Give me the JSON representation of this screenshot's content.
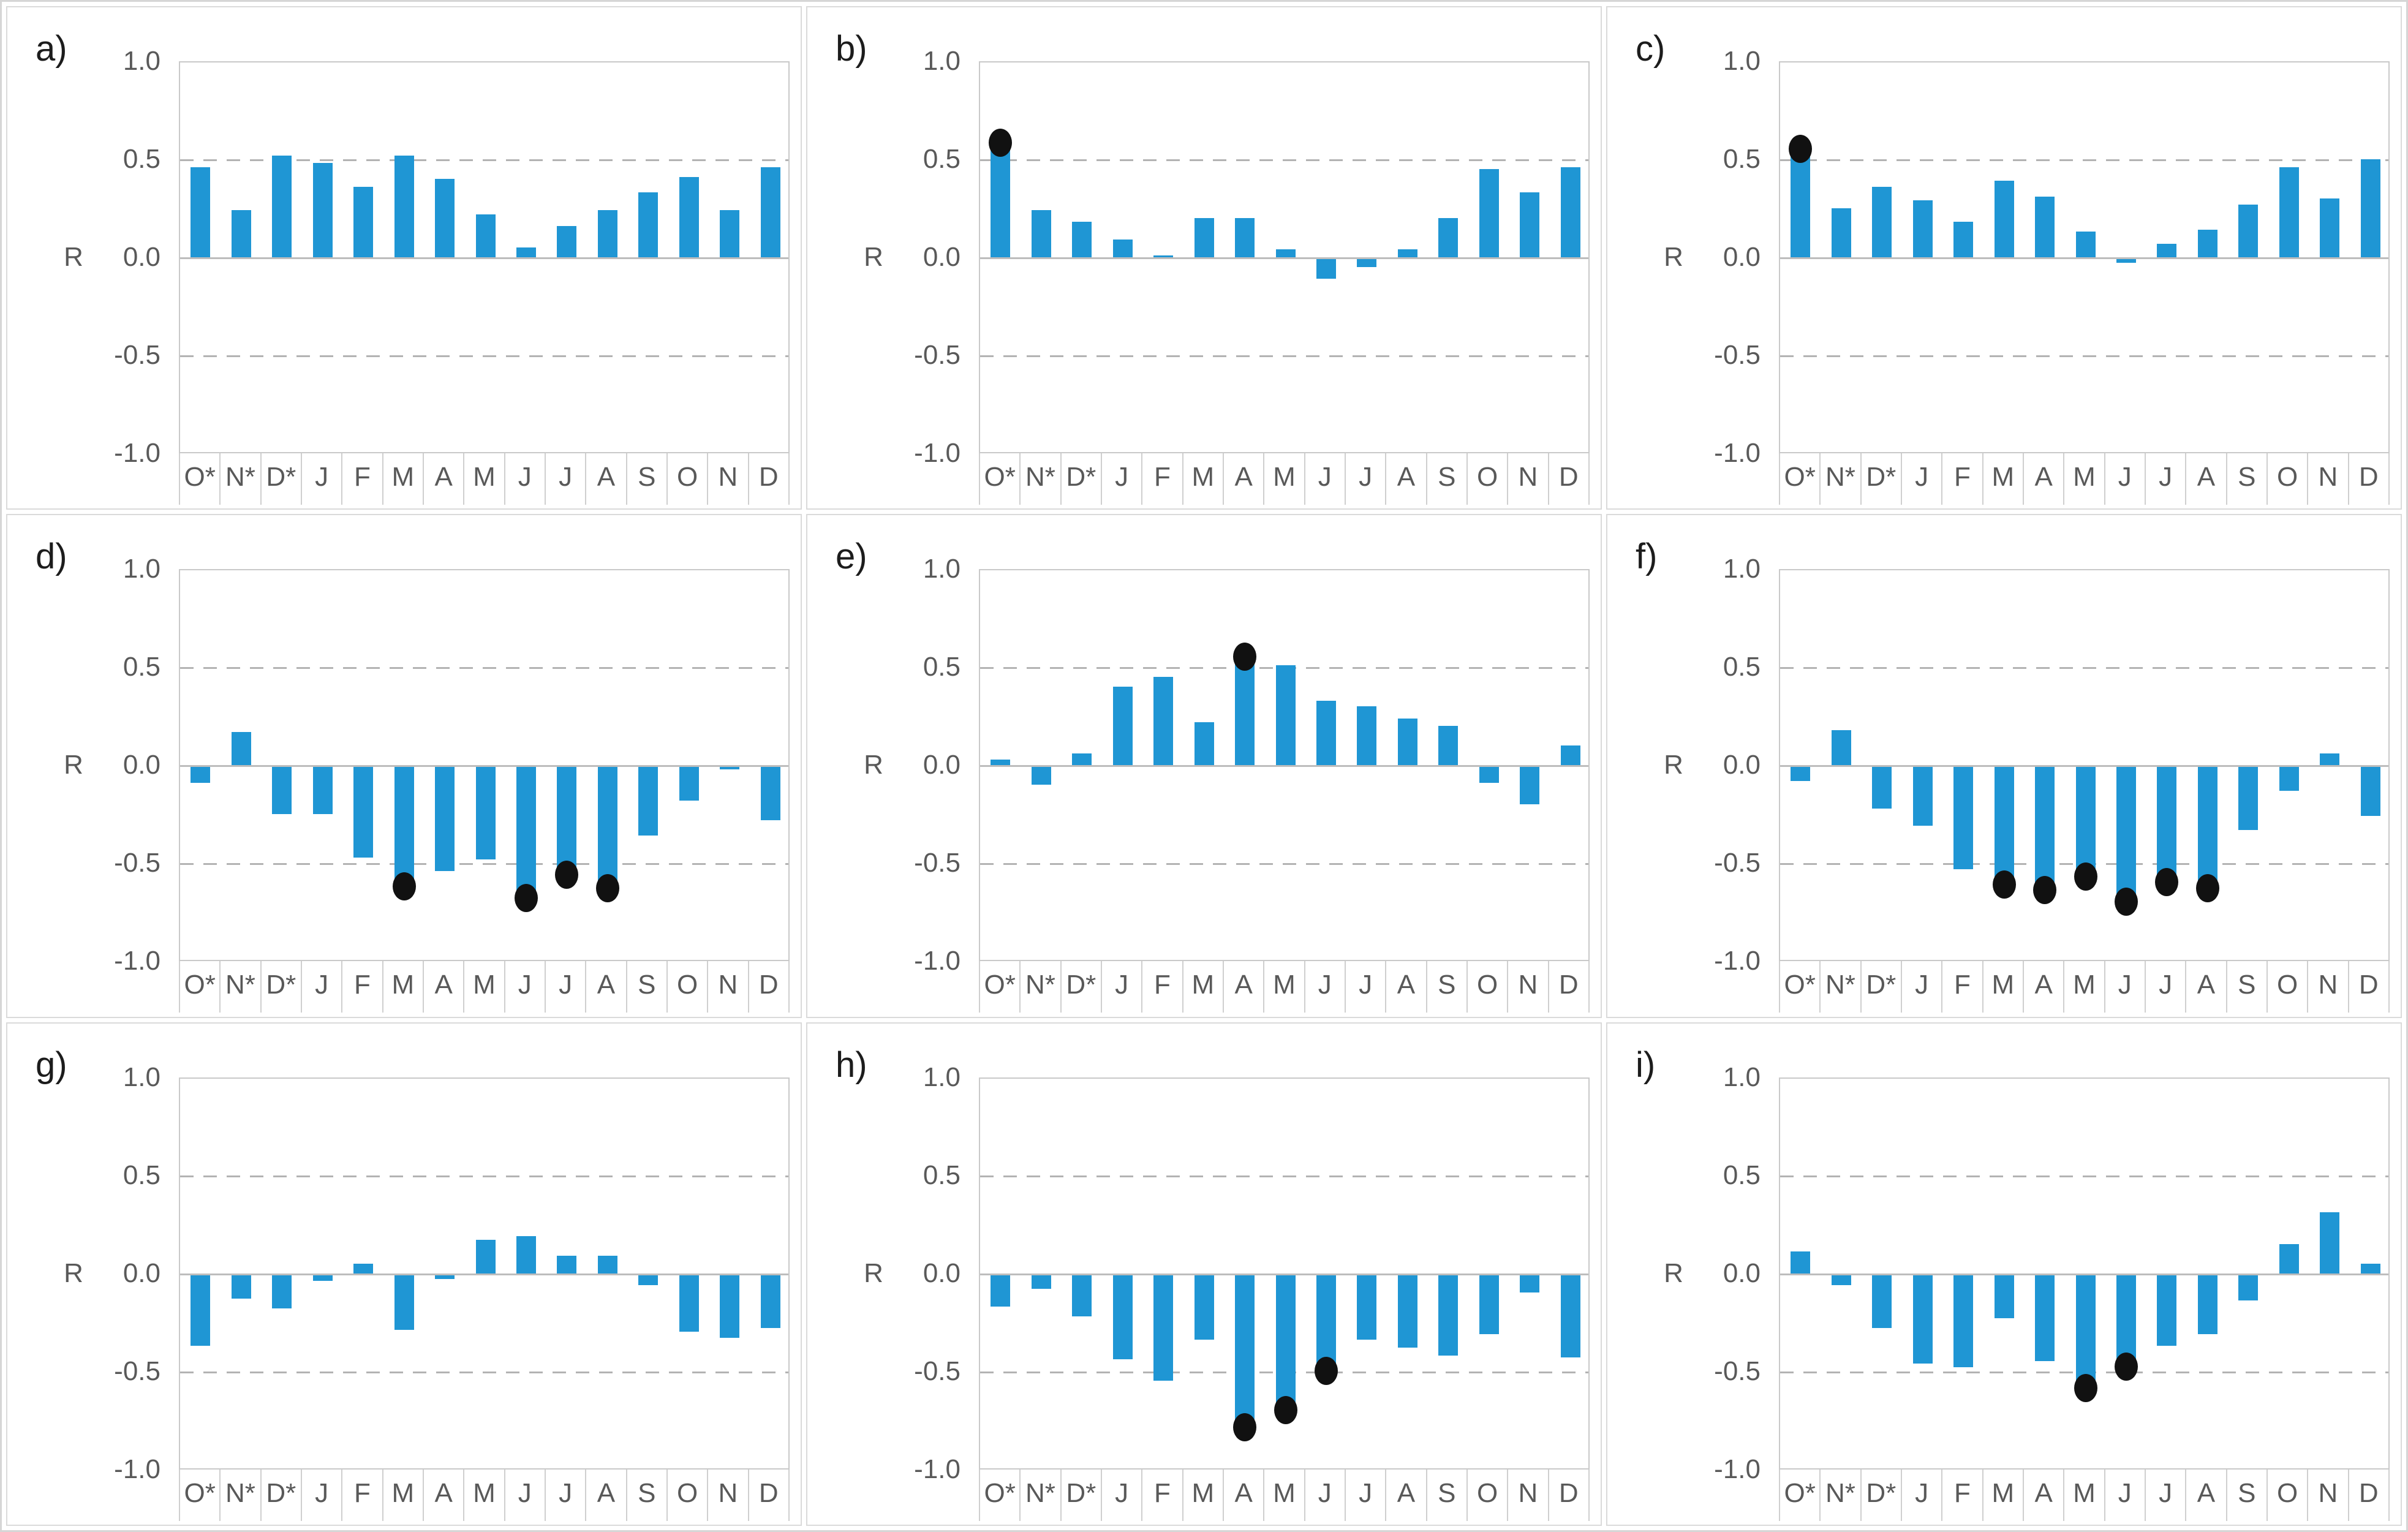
{
  "figure": {
    "y_axis_label": "R",
    "y_tick_labels": [
      "1.0",
      "0.5",
      "0.0",
      "-0.5",
      "-1.0"
    ],
    "categories": [
      "O*",
      "N*",
      "D*",
      "J",
      "F",
      "M",
      "A",
      "M",
      "J",
      "J",
      "A",
      "S",
      "O",
      "N",
      "D"
    ],
    "colors": {
      "bar": "#1f96d4",
      "significance_dot": "#111111",
      "gridline": "#b3b3b3",
      "zero_line": "#bdbdbd",
      "plot_border": "#c9c9c9",
      "panel_border": "#dadada",
      "tick_text": "#595959",
      "letter_text": "#1c1c1c"
    }
  },
  "chart_data": [
    {
      "type": "bar",
      "title": "a)",
      "ylabel": "R",
      "ylim": [
        -1.0,
        1.0
      ],
      "gridlines": [
        0.5,
        -0.5
      ],
      "grid_style": "dashed",
      "categories": [
        "O*",
        "N*",
        "D*",
        "J",
        "F",
        "M",
        "A",
        "M",
        "J",
        "J",
        "A",
        "S",
        "O",
        "N",
        "D"
      ],
      "values": [
        0.46,
        0.24,
        0.52,
        0.48,
        0.36,
        0.52,
        0.4,
        0.22,
        0.05,
        0.16,
        0.24,
        0.33,
        0.41,
        0.24,
        0.46
      ],
      "significant_marker_indices": []
    },
    {
      "type": "bar",
      "title": "b)",
      "ylabel": "R",
      "ylim": [
        -1.0,
        1.0
      ],
      "gridlines": [
        0.5,
        -0.5
      ],
      "grid_style": "dashed",
      "categories": [
        "O*",
        "N*",
        "D*",
        "J",
        "F",
        "M",
        "A",
        "M",
        "J",
        "J",
        "A",
        "S",
        "O",
        "N",
        "D"
      ],
      "values": [
        0.55,
        0.24,
        0.18,
        0.09,
        0.01,
        0.2,
        0.2,
        0.04,
        -0.1,
        -0.04,
        0.04,
        0.2,
        0.45,
        0.33,
        0.46
      ],
      "significant_marker_indices": [
        0
      ]
    },
    {
      "type": "bar",
      "title": "c)",
      "ylabel": "R",
      "ylim": [
        -1.0,
        1.0
      ],
      "gridlines": [
        0.5,
        -0.5
      ],
      "grid_style": "dashed",
      "categories": [
        "O*",
        "N*",
        "D*",
        "J",
        "F",
        "M",
        "A",
        "M",
        "J",
        "J",
        "A",
        "S",
        "O",
        "N",
        "D"
      ],
      "values": [
        0.52,
        0.25,
        0.36,
        0.29,
        0.18,
        0.39,
        0.31,
        0.13,
        -0.02,
        0.07,
        0.14,
        0.27,
        0.46,
        0.3,
        0.5
      ],
      "significant_marker_indices": [
        0
      ]
    },
    {
      "type": "bar",
      "title": "d)",
      "ylabel": "R",
      "ylim": [
        -1.0,
        1.0
      ],
      "gridlines": [
        0.5,
        -0.5
      ],
      "grid_style": "dashed",
      "categories": [
        "O*",
        "N*",
        "D*",
        "J",
        "F",
        "M",
        "A",
        "M",
        "J",
        "J",
        "A",
        "S",
        "O",
        "N",
        "D"
      ],
      "values": [
        -0.08,
        0.17,
        -0.24,
        -0.24,
        -0.46,
        -0.57,
        -0.53,
        -0.47,
        -0.63,
        -0.51,
        -0.58,
        -0.35,
        -0.17,
        -0.01,
        -0.27
      ],
      "significant_marker_indices": [
        5,
        8,
        9,
        10
      ]
    },
    {
      "type": "bar",
      "title": "e)",
      "ylabel": "R",
      "ylim": [
        -1.0,
        1.0
      ],
      "gridlines": [
        0.5,
        -0.5
      ],
      "grid_style": "dashed",
      "categories": [
        "O*",
        "N*",
        "D*",
        "J",
        "F",
        "M",
        "A",
        "M",
        "J",
        "J",
        "A",
        "S",
        "O",
        "N",
        "D"
      ],
      "values": [
        0.03,
        -0.09,
        0.06,
        0.4,
        0.45,
        0.22,
        0.52,
        0.51,
        0.33,
        0.3,
        0.24,
        0.2,
        -0.08,
        -0.19,
        0.1
      ],
      "significant_marker_indices": [
        6
      ]
    },
    {
      "type": "bar",
      "title": "f)",
      "ylabel": "R",
      "ylim": [
        -1.0,
        1.0
      ],
      "gridlines": [
        0.5,
        -0.5
      ],
      "grid_style": "dashed",
      "categories": [
        "O*",
        "N*",
        "D*",
        "J",
        "F",
        "M",
        "A",
        "M",
        "J",
        "J",
        "A",
        "S",
        "O",
        "N",
        "D"
      ],
      "values": [
        -0.07,
        0.18,
        -0.21,
        -0.3,
        -0.52,
        -0.56,
        -0.59,
        -0.52,
        -0.65,
        -0.55,
        -0.58,
        -0.32,
        -0.12,
        0.06,
        -0.25
      ],
      "significant_marker_indices": [
        5,
        6,
        7,
        8,
        9,
        10
      ]
    },
    {
      "type": "bar",
      "title": "g)",
      "ylabel": "R",
      "ylim": [
        -1.0,
        1.0
      ],
      "gridlines": [
        0.5,
        -0.5
      ],
      "grid_style": "dashed",
      "categories": [
        "O*",
        "N*",
        "D*",
        "J",
        "F",
        "M",
        "A",
        "M",
        "J",
        "J",
        "A",
        "S",
        "O",
        "N",
        "D"
      ],
      "values": [
        -0.36,
        -0.12,
        -0.17,
        -0.03,
        0.05,
        -0.28,
        -0.02,
        0.17,
        0.19,
        0.09,
        0.09,
        -0.05,
        -0.29,
        -0.32,
        -0.27
      ],
      "significant_marker_indices": []
    },
    {
      "type": "bar",
      "title": "h)",
      "ylabel": "R",
      "ylim": [
        -1.0,
        1.0
      ],
      "gridlines": [
        0.5,
        -0.5
      ],
      "grid_style": "dashed",
      "categories": [
        "O*",
        "N*",
        "D*",
        "J",
        "F",
        "M",
        "A",
        "M",
        "J",
        "J",
        "A",
        "S",
        "O",
        "N",
        "D"
      ],
      "values": [
        -0.16,
        -0.07,
        -0.21,
        -0.43,
        -0.54,
        -0.33,
        -0.74,
        -0.65,
        -0.45,
        -0.33,
        -0.37,
        -0.41,
        -0.3,
        -0.09,
        -0.42
      ],
      "significant_marker_indices": [
        6,
        7,
        8
      ]
    },
    {
      "type": "bar",
      "title": "i)",
      "ylabel": "R",
      "ylim": [
        -1.0,
        1.0
      ],
      "gridlines": [
        0.5,
        -0.5
      ],
      "grid_style": "dashed",
      "categories": [
        "O*",
        "N*",
        "D*",
        "J",
        "F",
        "M",
        "A",
        "M",
        "J",
        "J",
        "A",
        "S",
        "O",
        "N",
        "D"
      ],
      "values": [
        0.11,
        -0.05,
        -0.27,
        -0.45,
        -0.47,
        -0.22,
        -0.44,
        -0.54,
        -0.43,
        -0.36,
        -0.3,
        -0.13,
        0.15,
        0.31,
        0.05
      ],
      "significant_marker_indices": [
        7,
        8
      ]
    }
  ]
}
